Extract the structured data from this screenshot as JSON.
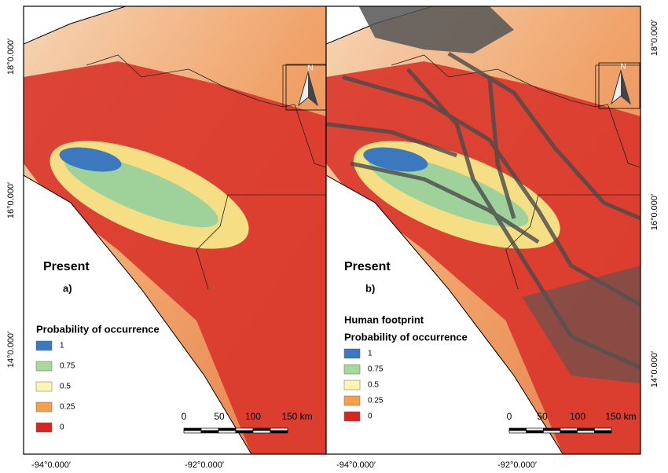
{
  "panels": [
    {
      "period": "Present",
      "label": "a)",
      "legend_title": "Probability of occurrence",
      "legend": [
        {
          "label": "1",
          "color": "#3b78bd"
        },
        {
          "label": "0.75",
          "color": "#a6d99a"
        },
        {
          "label": "0.5",
          "color": "#fbf5b4"
        },
        {
          "label": "0.25",
          "color": "#f4a04a"
        },
        {
          "label": "0",
          "color": "#d7261e"
        }
      ],
      "scale_labels": [
        "0",
        "50",
        "100",
        "150 km"
      ],
      "north": "N",
      "x_labels": [
        "-94°0.000′",
        "-92°0.000′"
      ],
      "y_labels": [
        "18°0.000′",
        "16°0.000′",
        "14°0.000′"
      ]
    },
    {
      "period": "Present",
      "label": "b)",
      "overlay_title": "Human footprint",
      "legend_title": "Probability of occurrence",
      "legend": [
        {
          "label": "1",
          "color": "#3b78bd"
        },
        {
          "label": "0.75",
          "color": "#a6d99a"
        },
        {
          "label": "0.5",
          "color": "#fbf5b4"
        },
        {
          "label": "0.25",
          "color": "#f4a04a"
        },
        {
          "label": "0",
          "color": "#d7261e"
        }
      ],
      "scale_labels": [
        "0",
        "50",
        "100",
        "150 km"
      ],
      "north": "N",
      "x_labels": [
        "-94°0.000′",
        "-92°0.000′"
      ],
      "y_labels": [
        "18°0.000′",
        "16°0.000′",
        "14°0.000′"
      ]
    }
  ]
}
